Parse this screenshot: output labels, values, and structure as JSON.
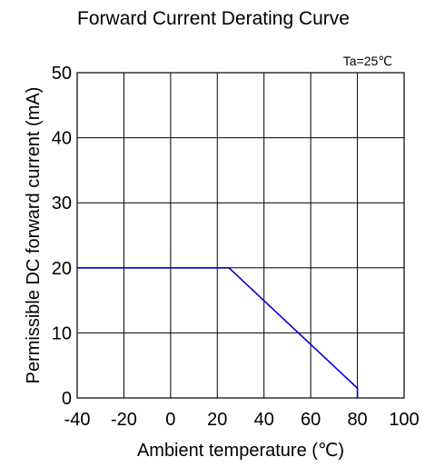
{
  "chart_data": {
    "type": "line",
    "title": "Forward Current Derating Curve",
    "xlabel": "Ambient temperature (℃)",
    "ylabel": "Permissible DC forward current (mA)",
    "annotation": "Ta=25℃",
    "xlim": [
      -40,
      100
    ],
    "ylim": [
      0,
      50
    ],
    "x_ticks": [
      -40,
      -20,
      0,
      20,
      40,
      60,
      80,
      100
    ],
    "y_ticks": [
      0,
      10,
      20,
      30,
      40,
      50
    ],
    "x_tick_labels": [
      "-40",
      "-20",
      "0",
      "20",
      "40",
      "60",
      "80",
      "100"
    ],
    "y_tick_labels": [
      "0",
      "10",
      "20",
      "30",
      "40",
      "50"
    ],
    "grid": true,
    "line_color": "#0000cc",
    "series": [
      {
        "x": [
          -40,
          25,
          80,
          80
        ],
        "y": [
          20,
          20,
          1.5,
          0
        ]
      }
    ]
  }
}
